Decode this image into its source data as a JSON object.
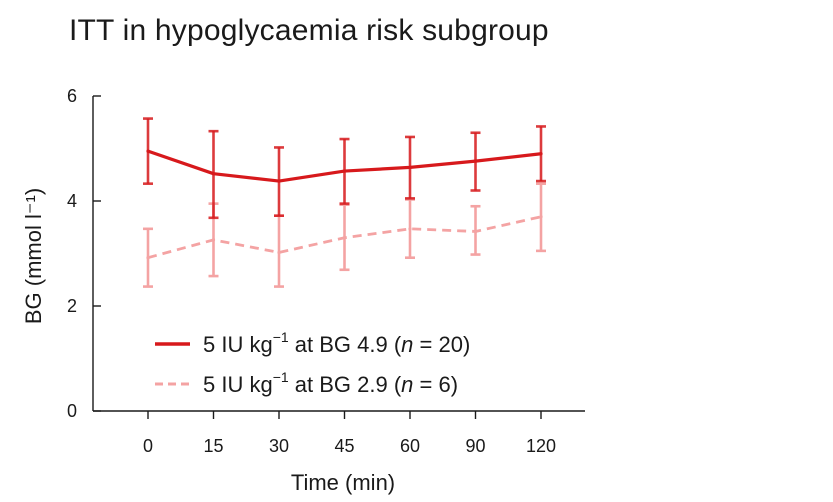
{
  "chart_data": {
    "type": "line",
    "title": "ITT in hypoglycaemia risk subgroup",
    "xlabel": "Time (min)",
    "ylabel": "BG (mmol l⁻¹)",
    "categories": [
      "0",
      "15",
      "30",
      "45",
      "60",
      "90",
      "120"
    ],
    "ylim": [
      0,
      6
    ],
    "yticks": [
      0,
      2,
      4,
      6
    ],
    "grid": false,
    "legend_position": "bottom-center",
    "series": [
      {
        "name": "5 IU kg⁻¹ at BG 4.9 (n = 20)",
        "legend_prefix": "5 IU kg",
        "legend_sup": "−1",
        "legend_mid": " at BG 4.9 (",
        "legend_n": "n",
        "legend_suffix": " = 20)",
        "color": "#d7191c",
        "dashed": false,
        "values": [
          4.95,
          4.52,
          4.38,
          4.57,
          4.64,
          4.76,
          4.9
        ],
        "lower": [
          4.33,
          3.68,
          3.72,
          3.95,
          4.05,
          4.2,
          4.38
        ],
        "upper": [
          5.57,
          5.33,
          5.02,
          5.18,
          5.22,
          5.3,
          5.42
        ]
      },
      {
        "name": "5 IU kg⁻¹ at BG 2.9 (n = 6)",
        "legend_prefix": "5 IU kg",
        "legend_sup": "−1",
        "legend_mid": " at BG 2.9 (",
        "legend_n": "n",
        "legend_suffix": " = 6)",
        "color": "#f4a3a3",
        "dashed": true,
        "values": [
          2.92,
          3.26,
          3.02,
          3.3,
          3.47,
          3.42,
          3.7
        ],
        "lower": [
          2.37,
          2.57,
          2.37,
          2.69,
          2.92,
          2.98,
          3.05
        ],
        "upper": [
          3.47,
          3.95,
          3.72,
          3.93,
          4.03,
          3.9,
          4.33
        ]
      }
    ]
  }
}
